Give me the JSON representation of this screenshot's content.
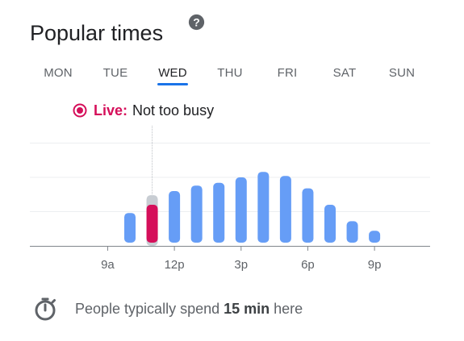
{
  "header": {
    "title": "Popular times",
    "help_icon": "question-circle-icon"
  },
  "days": {
    "tabs": [
      "MON",
      "TUE",
      "WED",
      "THU",
      "FRI",
      "SAT",
      "SUN"
    ],
    "selected": "WED"
  },
  "live": {
    "icon": "live-radio-icon",
    "label": "Live:",
    "status": "Not too busy",
    "color": "#d50f5a"
  },
  "chart_data": {
    "type": "bar",
    "title": "",
    "xlabel": "",
    "ylabel": "",
    "x": [
      9,
      10,
      11,
      12,
      13,
      14,
      15,
      16,
      17,
      18,
      19,
      20,
      21
    ],
    "x_tick_labels": [
      {
        "x": 9,
        "label": "9a"
      },
      {
        "x": 12,
        "label": "12p"
      },
      {
        "x": 15,
        "label": "3p"
      },
      {
        "x": 18,
        "label": "6p"
      },
      {
        "x": 21,
        "label": "9p"
      }
    ],
    "xlim": [
      5.5,
      23.5
    ],
    "ylim": [
      0,
      100
    ],
    "grid": true,
    "series": [
      {
        "values": [
          24,
          35,
          40,
          44,
          46,
          50,
          54,
          51,
          42,
          30,
          18,
          11
        ],
        "x": [
          10,
          11,
          12,
          13,
          14,
          15,
          16,
          17,
          18,
          19,
          20,
          21
        ],
        "color": "#669df6"
      }
    ],
    "live": {
      "x": 11,
      "value": 30,
      "usual": 37,
      "color": "#d50f5a"
    },
    "current_time_marker_x": 11
  },
  "footer": {
    "icon": "stopwatch-icon",
    "prefix": "People typically spend ",
    "duration": "15 min",
    "suffix": " here"
  }
}
